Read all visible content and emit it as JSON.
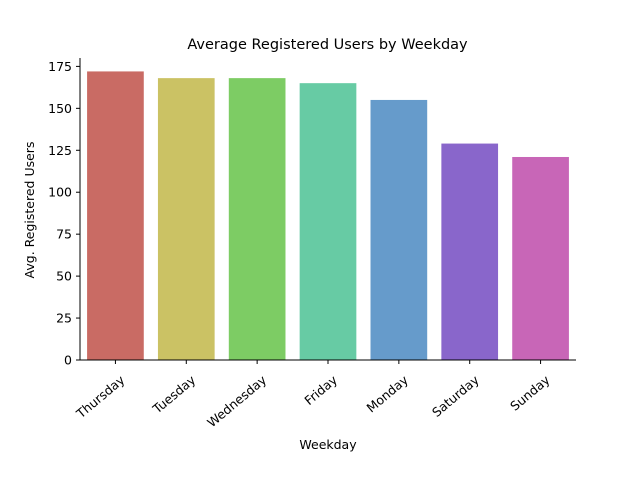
{
  "chart_data": {
    "type": "bar",
    "title": "Average Registered Users by Weekday",
    "xlabel": "Weekday",
    "ylabel": "Avg. Registered Users",
    "categories": [
      "Thursday",
      "Tuesday",
      "Wednesday",
      "Friday",
      "Monday",
      "Saturday",
      "Sunday"
    ],
    "values": [
      172,
      168,
      168,
      165,
      155,
      129,
      121
    ],
    "colors": [
      "#C96B64",
      "#CBC264",
      "#7DCC64",
      "#67CBA4",
      "#669BCB",
      "#8966CB",
      "#C866B7"
    ],
    "ylim": [
      0,
      180
    ],
    "yticks": [
      0,
      25,
      50,
      75,
      100,
      125,
      150,
      175
    ],
    "grid": false,
    "legend": "none"
  }
}
